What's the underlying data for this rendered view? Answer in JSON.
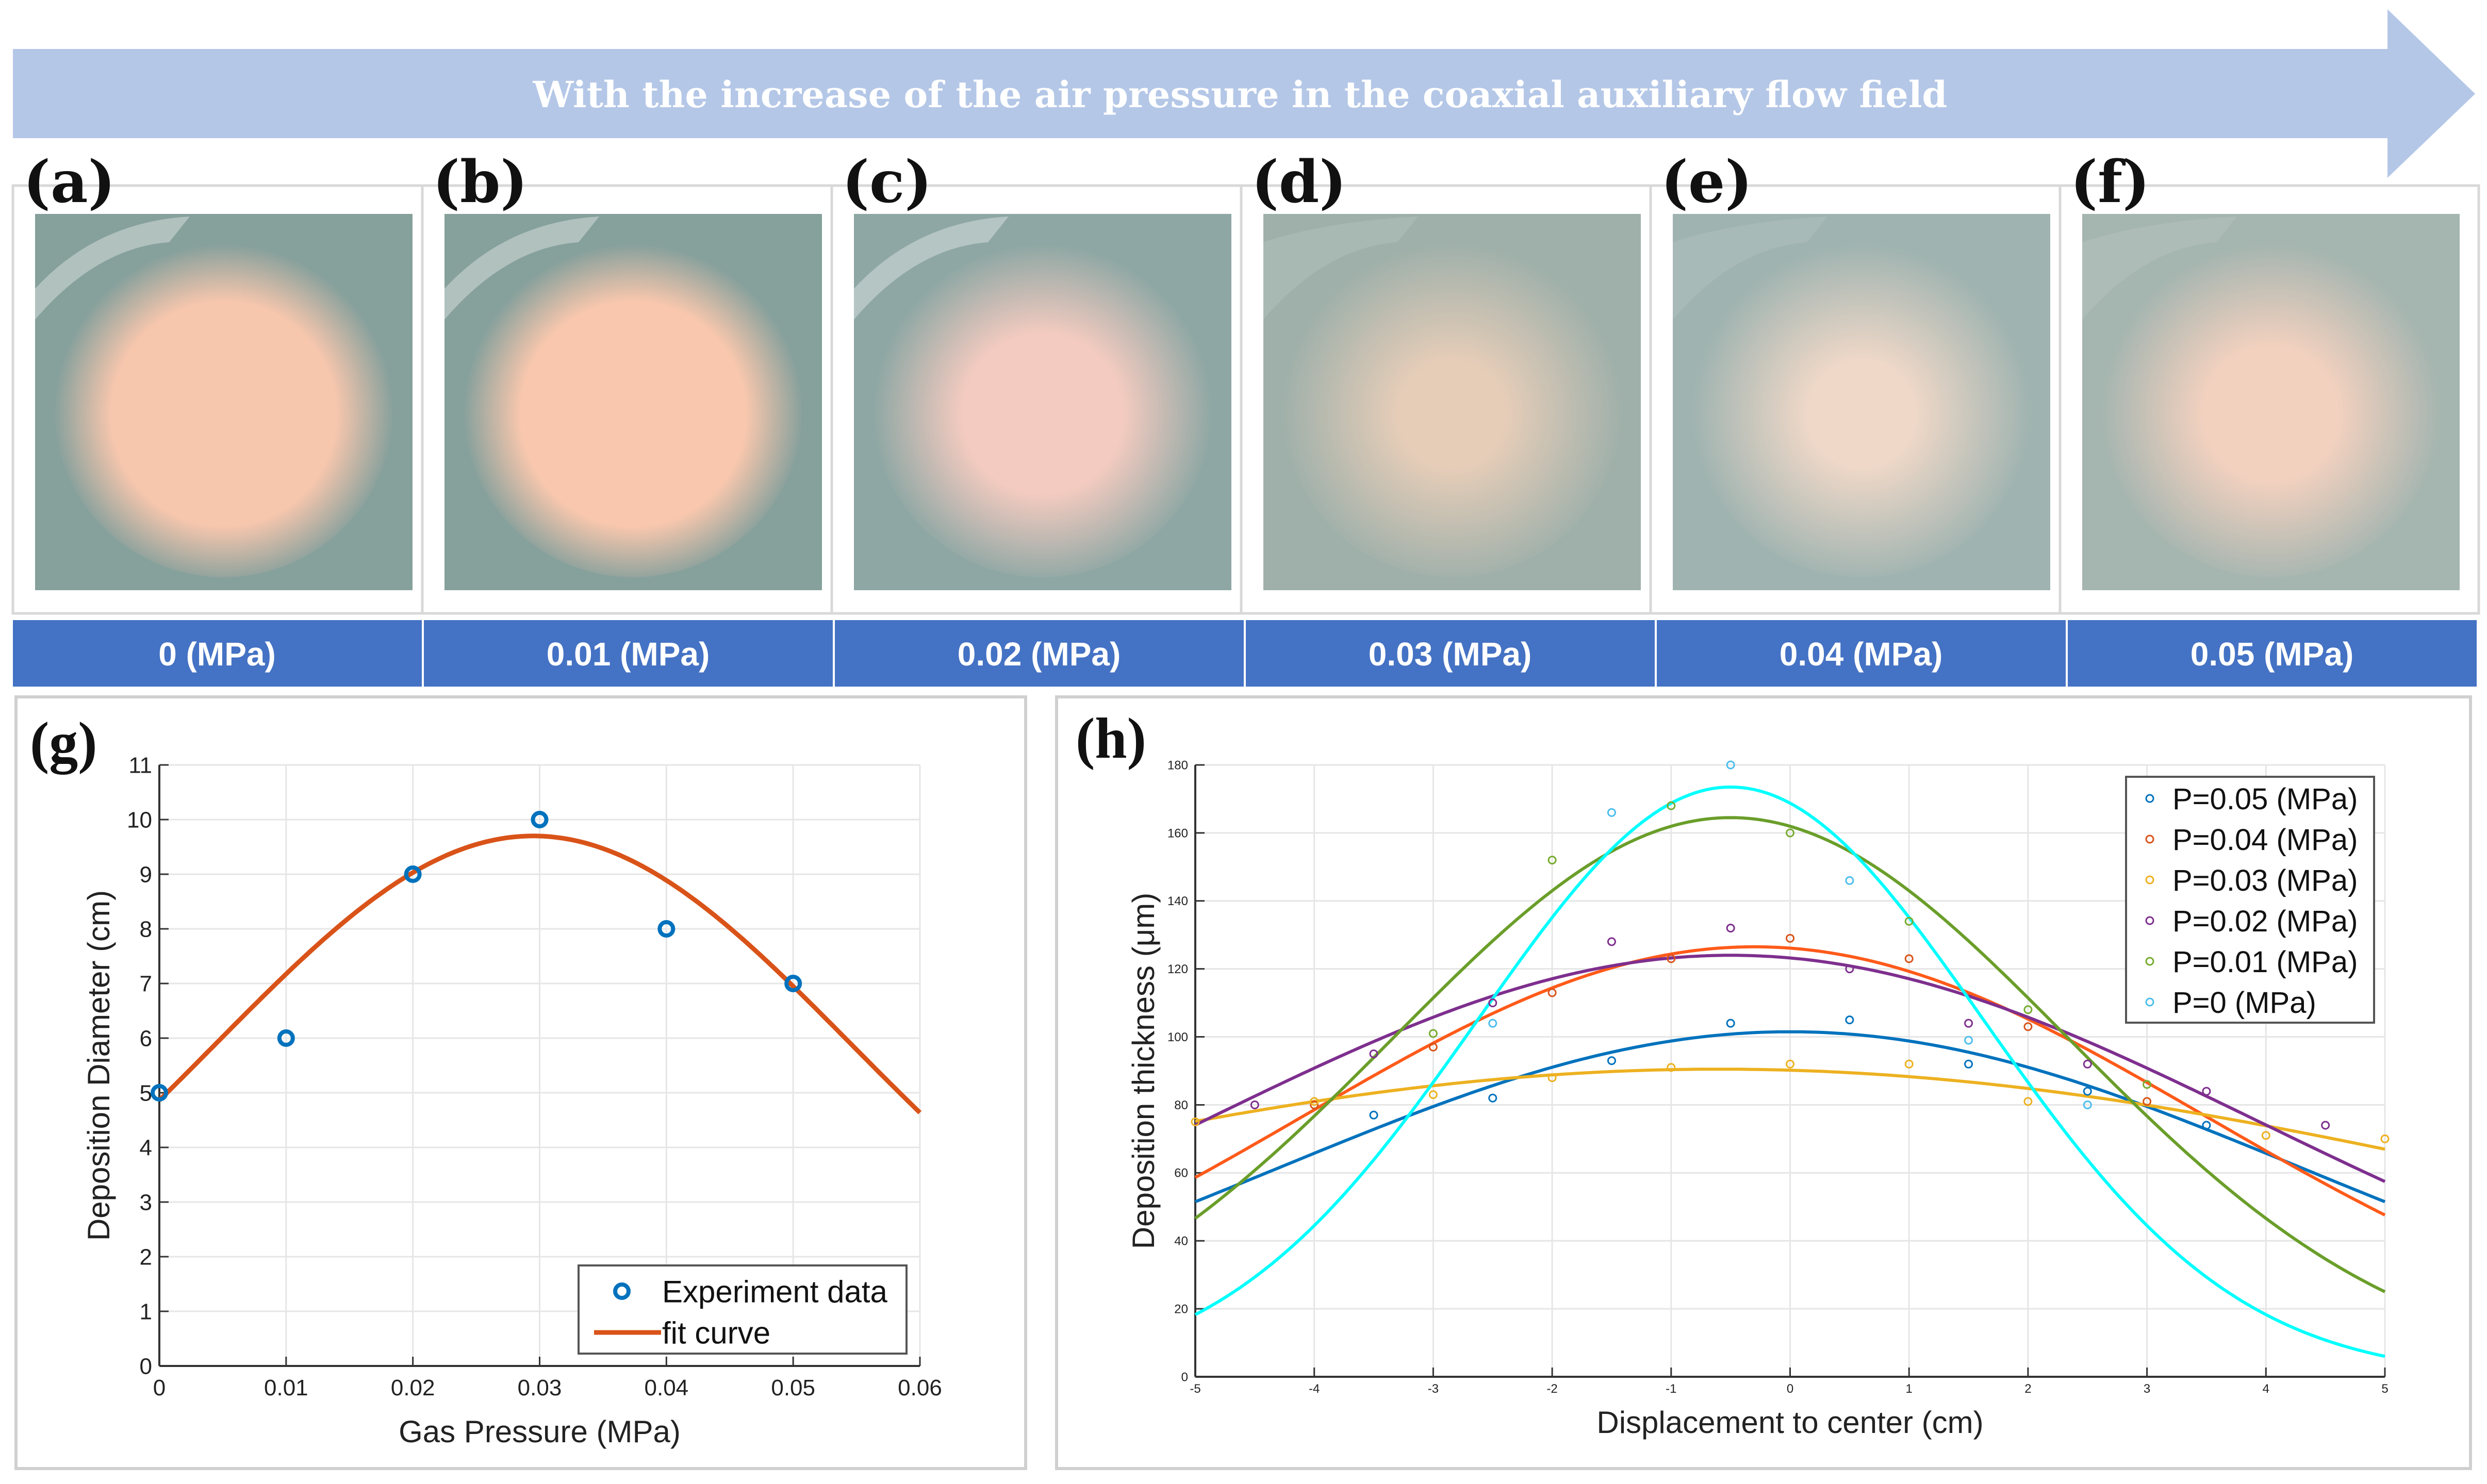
{
  "banner": {
    "text": "With the increase of the air pressure in the coaxial auxiliary flow field",
    "color": "#b4c7e7"
  },
  "photos": [
    {
      "label": "(a)",
      "pressure": "0 (MPa)",
      "spot": "#f6c6ad",
      "bg": "#86a09c",
      "sharpness": 0.85
    },
    {
      "label": "(b)",
      "pressure": "0.01 (MPa)",
      "spot": "#f8c7ad",
      "bg": "#86a09c",
      "sharpness": 0.85
    },
    {
      "label": "(c)",
      "pressure": "0.02 (MPa)",
      "spot": "#f4cbc0",
      "bg": "#8ea7a4",
      "sharpness": 0.6
    },
    {
      "label": "(d)",
      "pressure": "0.03 (MPa)",
      "spot": "#e6cdb8",
      "bg": "#9fb0aa",
      "sharpness": 0.4
    },
    {
      "label": "(e)",
      "pressure": "0.04 (MPa)",
      "spot": "#efd8c8",
      "bg": "#9fb3b0",
      "sharpness": 0.4
    },
    {
      "label": "(f)",
      "pressure": "0.05 (MPa)",
      "spot": "#f3d1bf",
      "bg": "#a5b5b0",
      "sharpness": 0.5
    }
  ],
  "pressure_bar_color": "#4472c4",
  "chart_data": [
    {
      "panel": "(g)",
      "type": "scatter",
      "xlabel": "Gas Pressure (MPa)",
      "ylabel": "Deposition Diameter (cm)",
      "xlim": [
        0,
        0.06
      ],
      "ylim": [
        0,
        11
      ],
      "xticks": [
        "0",
        "0.01",
        "0.02",
        "0.03",
        "0.04",
        "0.05",
        "0.06"
      ],
      "yticks": [
        "0",
        "1",
        "2",
        "3",
        "4",
        "5",
        "6",
        "7",
        "8",
        "9",
        "10",
        "11"
      ],
      "grid": true,
      "legend_position": "bottom-right",
      "series": [
        {
          "name": "Experiment data",
          "kind": "points",
          "color": "#0072bd",
          "x": [
            0,
            0.01,
            0.02,
            0.03,
            0.04,
            0.05
          ],
          "y": [
            5,
            6,
            9,
            10,
            8,
            7
          ]
        },
        {
          "name": "fit curve",
          "kind": "line",
          "color": "#d95319",
          "gaussian": {
            "a": 9.7,
            "b": 0.0295,
            "c": 0.0355
          }
        }
      ]
    },
    {
      "panel": "(h)",
      "type": "scatter",
      "xlabel": "Displacement to center (cm)",
      "ylabel": "Deposition thickness (μm)",
      "xlim": [
        -5,
        5
      ],
      "ylim": [
        0,
        180
      ],
      "xticks": [
        "-5",
        "-4",
        "-3",
        "-2",
        "-1",
        "0",
        "1",
        "2",
        "3",
        "4",
        "5"
      ],
      "yticks": [
        "0",
        "20",
        "40",
        "60",
        "80",
        "100",
        "120",
        "140",
        "160",
        "180"
      ],
      "grid": true,
      "legend_position": "top-right",
      "series": [
        {
          "name": "P=0.05 (MPa)",
          "color": "#0072bd",
          "line_color": "#0072bd",
          "x": [
            -3.5,
            -2.5,
            -1.5,
            -0.5,
            0.5,
            1.5,
            2.5,
            3.5
          ],
          "y": [
            77,
            82,
            93,
            104,
            105,
            92,
            84,
            74
          ],
          "gaussian": {
            "a": 101.5,
            "b": 0,
            "c": 6.07
          }
        },
        {
          "name": "P=0.04 (MPa)",
          "color": "#d95319",
          "line_color": "#ff5a1a",
          "x": [
            -4,
            -3,
            -2,
            -1,
            0,
            1,
            2,
            3
          ],
          "y": [
            80,
            97,
            113,
            123,
            129,
            123,
            103,
            81
          ],
          "gaussian": {
            "a": 126.5,
            "b": -0.3,
            "c": 5.36
          }
        },
        {
          "name": "P=0.03 (MPa)",
          "color": "#edb120",
          "line_color": "#edb120",
          "x": [
            -5,
            -4,
            -3,
            -2,
            -1,
            0,
            1,
            2,
            4,
            5
          ],
          "y": [
            75,
            81,
            83,
            88,
            91,
            92,
            92,
            81,
            71,
            70
          ],
          "gaussian": {
            "a": 90.5,
            "b": -0.6,
            "c": 10.2
          }
        },
        {
          "name": "P=0.02 (MPa)",
          "color": "#7e2f8e",
          "line_color": "#7e2f8e",
          "x": [
            -4.5,
            -3.5,
            -2.5,
            -1.5,
            -0.5,
            0.5,
            1.5,
            2.5,
            3.5,
            4.5
          ],
          "y": [
            80,
            95,
            110,
            128,
            132,
            120,
            104,
            92,
            84,
            74
          ],
          "gaussian": {
            "a": 124,
            "b": -0.5,
            "c": 6.27
          }
        },
        {
          "name": "P=0.01 (MPa)",
          "color": "#77ac30",
          "line_color": "#6a9e2a",
          "x": [
            -3,
            -2,
            -1,
            0,
            1,
            2,
            3
          ],
          "y": [
            101,
            152,
            168,
            160,
            134,
            108,
            86
          ],
          "gaussian": {
            "a": 164.5,
            "b": -0.5,
            "c": 4.007
          }
        },
        {
          "name": "P=0 (MPa)",
          "color": "#4dbeee",
          "line_color": "#00ffff",
          "x": [
            -2.5,
            -1.5,
            -0.5,
            0.5,
            1.5,
            2.5
          ],
          "y": [
            104,
            166,
            180,
            146,
            99,
            80
          ],
          "gaussian": {
            "a": 173.5,
            "b": -0.5,
            "c": 3.0
          }
        }
      ]
    }
  ]
}
